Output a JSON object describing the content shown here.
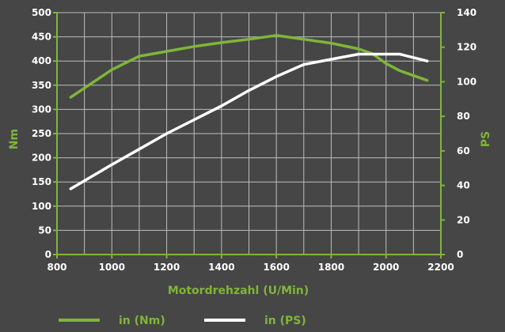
{
  "chart_data": {
    "type": "line",
    "xlabel": "Motordrehzahl (U/Min)",
    "ylabel_left": "Nm",
    "ylabel_right": "PS",
    "x_ticks": [
      "800",
      "1000",
      "1200",
      "1400",
      "1600",
      "1800",
      "2000",
      "2200"
    ],
    "y_left_ticks": [
      "0",
      "50",
      "100",
      "150",
      "200",
      "250",
      "300",
      "350",
      "400",
      "450",
      "500"
    ],
    "y_right_ticks": [
      "0",
      "20",
      "40",
      "60",
      "80",
      "100",
      "120",
      "140"
    ],
    "xlim": [
      800,
      2200
    ],
    "ylim_left": [
      0,
      500
    ],
    "ylim_right": [
      0,
      140
    ],
    "grid": true,
    "legend_position": "bottom",
    "series": [
      {
        "name": "in (Nm)",
        "axis": "left",
        "color": "#7fb539",
        "x": [
          850,
          1000,
          1100,
          1200,
          1300,
          1400,
          1500,
          1600,
          1700,
          1800,
          1900,
          1950,
          2000,
          2050,
          2150
        ],
        "y": [
          325,
          382,
          410,
          420,
          430,
          438,
          445,
          453,
          445,
          437,
          425,
          415,
          395,
          380,
          360
        ]
      },
      {
        "name": "in (PS)",
        "axis": "right",
        "color": "#ffffff",
        "x": [
          850,
          1000,
          1100,
          1200,
          1300,
          1400,
          1500,
          1600,
          1700,
          1800,
          1900,
          1950,
          2000,
          2050,
          2150
        ],
        "y": [
          38,
          52,
          61,
          70,
          78,
          86,
          95,
          103,
          110,
          113,
          116,
          116,
          116,
          116,
          112
        ]
      }
    ]
  },
  "colors": {
    "background": "#464646",
    "grid": "#bdbdbd",
    "green": "#7fb539",
    "white": "#ffffff"
  }
}
